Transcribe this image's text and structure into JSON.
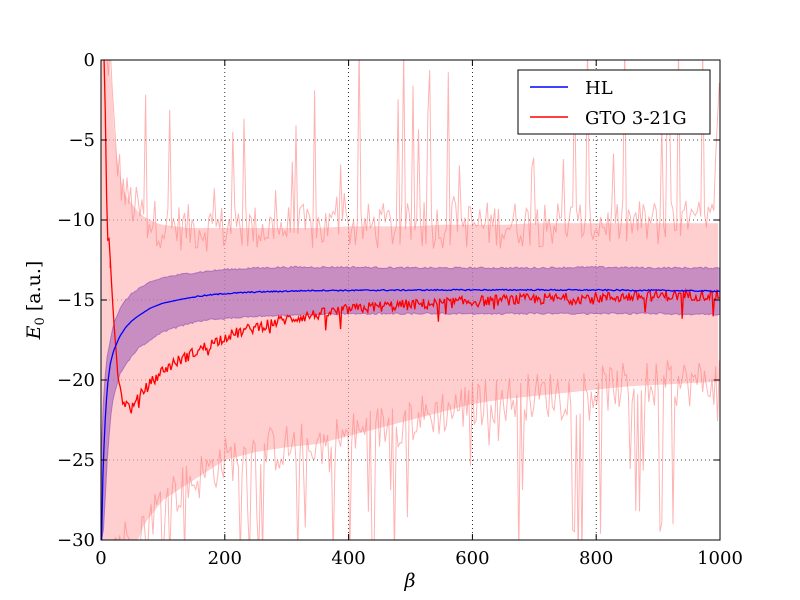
{
  "chart_data": {
    "type": "line",
    "title": "",
    "xlabel": "β",
    "ylabel": "E0 [a.u.]",
    "ylabel_main": "E",
    "ylabel_sub": "0",
    "ylabel_unit": " [a.u.]",
    "xlim": [
      0,
      1000
    ],
    "ylim": [
      -30,
      0
    ],
    "xticks": [
      0,
      200,
      400,
      600,
      800,
      1000
    ],
    "yticks": [
      0,
      -5,
      -10,
      -15,
      -20,
      -25,
      -30
    ],
    "xtick_labels": [
      "0",
      "200",
      "400",
      "600",
      "800",
      "1000"
    ],
    "ytick_labels": [
      "0",
      "−5",
      "−10",
      "−15",
      "−20",
      "−25",
      "−30"
    ],
    "grid": true,
    "legend_position": "top-right",
    "series": [
      {
        "name": "HL",
        "color": "#0000ff",
        "band_color": "#9b59b6",
        "x": [
          1,
          3,
          6,
          10,
          15,
          20,
          30,
          40,
          50,
          60,
          80,
          100,
          130,
          160,
          200,
          250,
          300,
          350,
          400,
          500,
          600,
          700,
          800,
          900,
          1000
        ],
        "mean": [
          -30,
          -26,
          -23,
          -20.5,
          -19,
          -18.2,
          -17.3,
          -16.7,
          -16.3,
          -16.0,
          -15.5,
          -15.2,
          -14.95,
          -14.75,
          -14.6,
          -14.5,
          -14.45,
          -14.4,
          -14.4,
          -14.38,
          -14.37,
          -14.37,
          -14.38,
          -14.4,
          -14.45
        ],
        "upper": [
          -24,
          -22,
          -20,
          -18.5,
          -17.5,
          -16.5,
          -15.6,
          -15.0,
          -14.6,
          -14.3,
          -13.9,
          -13.6,
          -13.4,
          -13.25,
          -13.1,
          -13.0,
          -12.95,
          -12.95,
          -12.95,
          -13.0,
          -13.0,
          -13.0,
          -12.95,
          -13.0,
          -13.0
        ],
        "lower": [
          -30,
          -30,
          -28,
          -25,
          -22.5,
          -21,
          -19.7,
          -19.0,
          -18.5,
          -18.0,
          -17.5,
          -17.0,
          -16.6,
          -16.3,
          -16.15,
          -16.0,
          -15.95,
          -15.9,
          -15.85,
          -15.85,
          -15.85,
          -15.85,
          -15.85,
          -15.85,
          -15.9
        ]
      },
      {
        "name": "GTO 3-21G",
        "color": "#ff0000",
        "band_color": "#ffb3b3",
        "x": [
          5,
          8,
          10,
          12,
          15,
          20,
          25,
          30,
          35,
          40,
          50,
          60,
          70,
          80,
          90,
          100,
          120,
          140,
          160,
          180,
          200,
          250,
          300,
          350,
          400,
          450,
          500,
          550,
          600,
          650,
          700,
          750,
          800,
          850,
          900,
          950,
          1000
        ],
        "mean": [
          0,
          -5,
          -12,
          -10.5,
          -12.5,
          -16,
          -18.5,
          -20.5,
          -21.2,
          -21.5,
          -21.8,
          -21.2,
          -20.6,
          -20.2,
          -19.8,
          -19.4,
          -18.9,
          -18.5,
          -18.1,
          -17.7,
          -17.3,
          -16.7,
          -16.2,
          -15.9,
          -15.6,
          -15.4,
          -15.3,
          -15.2,
          -15.1,
          -15.0,
          -14.95,
          -14.9,
          -14.85,
          -14.8,
          -14.75,
          -14.7,
          -14.7
        ],
        "spikes": [
          {
            "x": 140,
            "y": -20.2
          },
          {
            "x": 738,
            "y": -20.0
          },
          {
            "x": 15,
            "y": -13.0
          },
          {
            "x": 18,
            "y": -10.4
          }
        ],
        "band_upper": [
          0,
          0,
          0,
          0,
          0,
          -4,
          -6,
          -7,
          -8,
          -8.5,
          -9,
          -9.5,
          -9.8,
          -10,
          -10.2,
          -10.3,
          -10.4,
          -10.5,
          -10.5,
          -10.5,
          -10.5,
          -10.5,
          -10.5,
          -10.5,
          -10.4,
          -10.4,
          -10.4,
          -10.3,
          -10.3,
          -10.3,
          -10.2,
          -10.2,
          -10.2,
          -10.2,
          -10.2,
          -10.2,
          -10.2
        ],
        "band_lower": [
          -30,
          -30,
          -30,
          -30,
          -30,
          -30,
          -30,
          -30,
          -30,
          -30,
          -30,
          -30,
          -29,
          -28.5,
          -28,
          -27.5,
          -27,
          -26.5,
          -26,
          -25.5,
          -25,
          -24.5,
          -24.2,
          -24,
          -23.5,
          -23,
          -22.5,
          -22,
          -21.5,
          -21.2,
          -21,
          -20.8,
          -20.6,
          -20.4,
          -20.3,
          -20.2,
          -20.1
        ]
      }
    ]
  }
}
